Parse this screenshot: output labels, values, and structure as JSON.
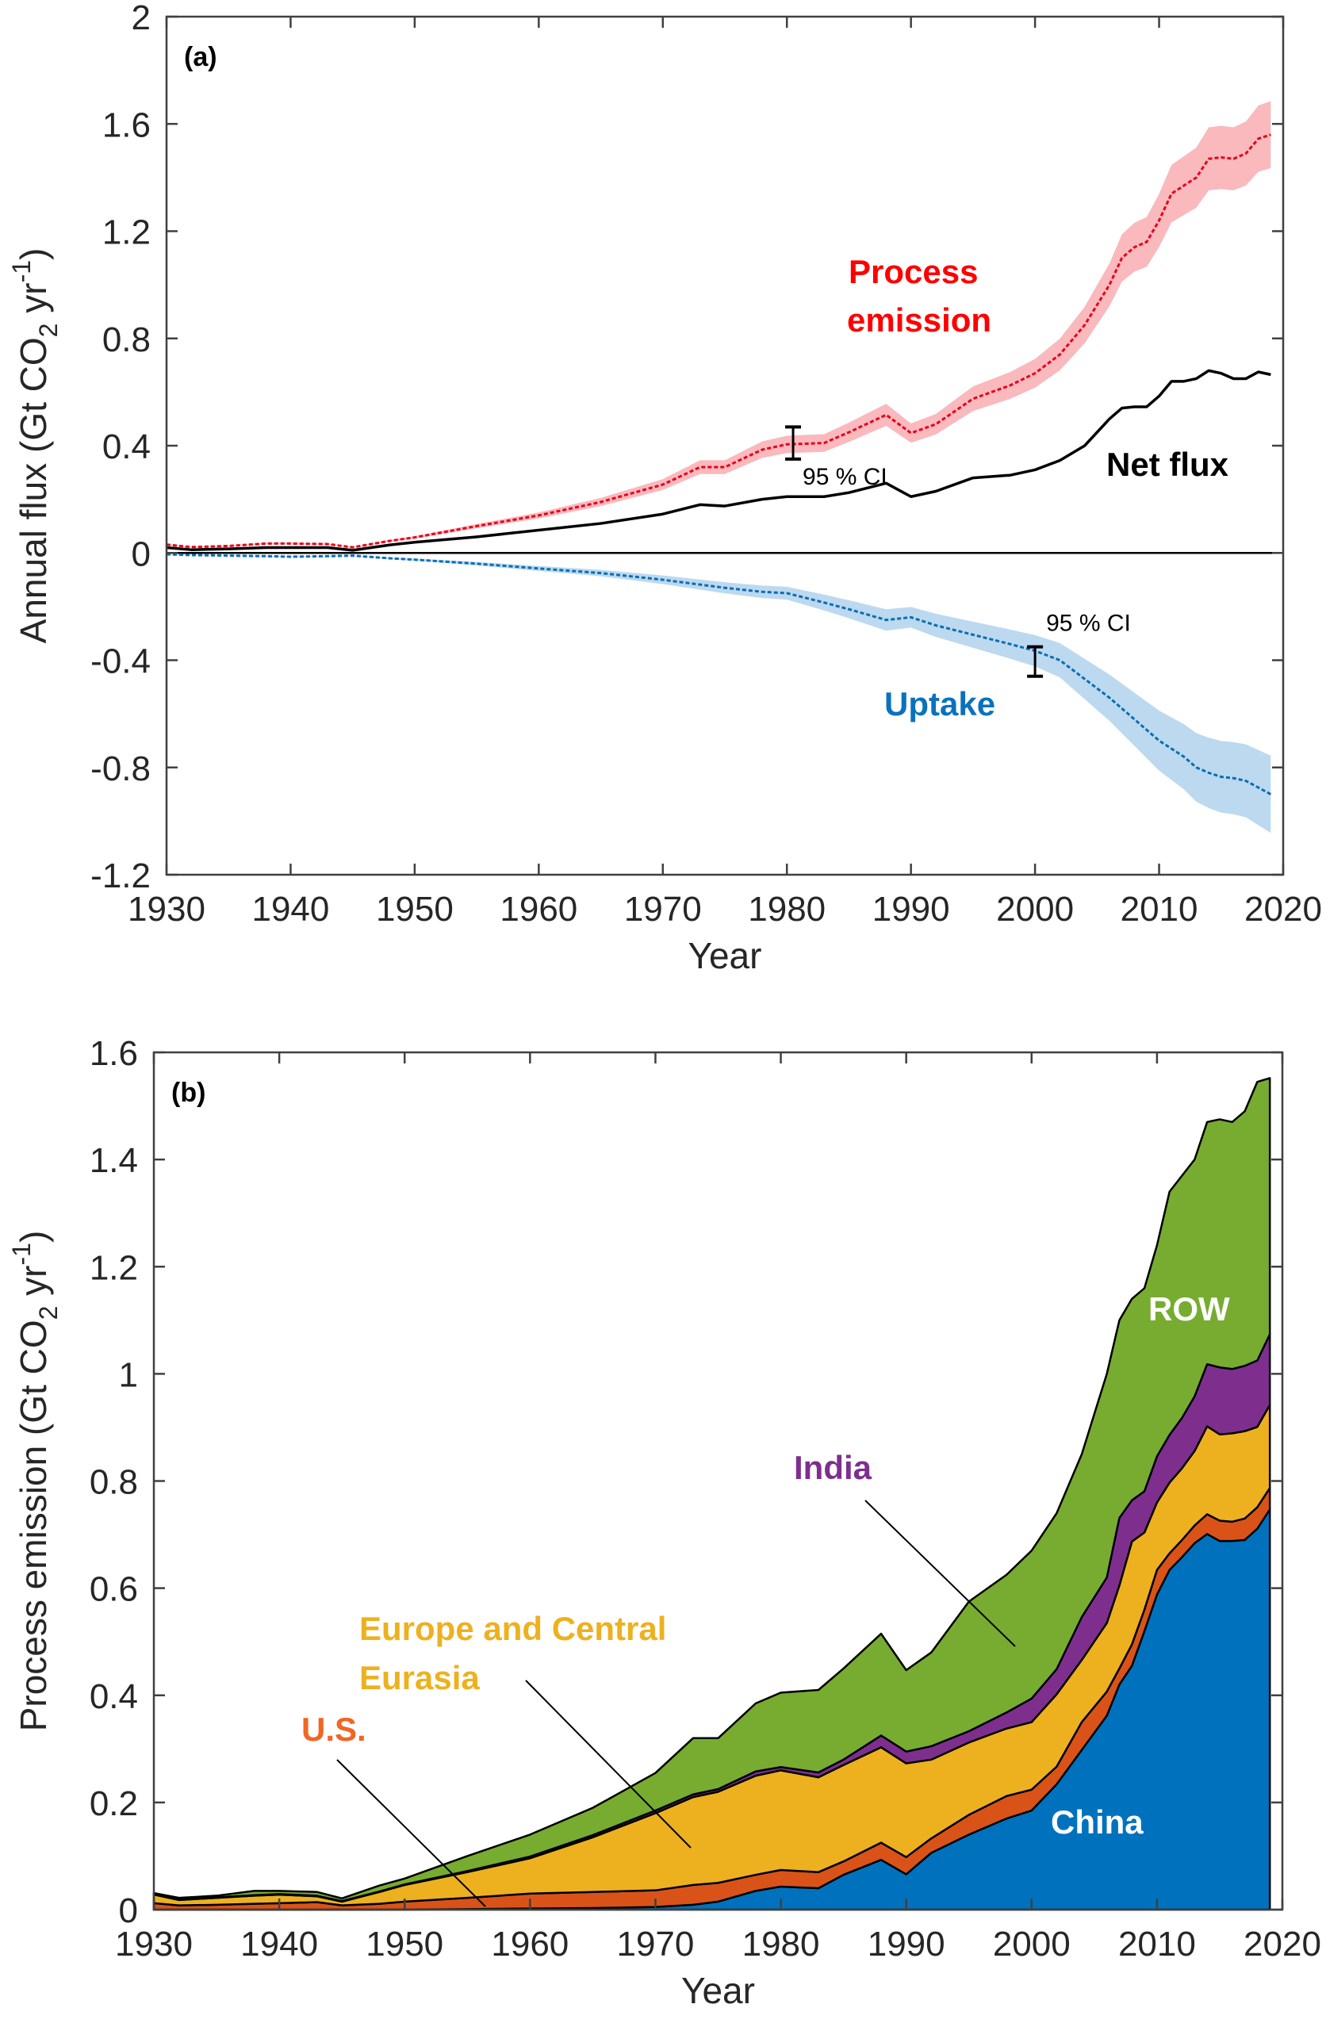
{
  "chart_data": [
    {
      "type": "line",
      "panel_label": "(a)",
      "xlabel": "Year",
      "ylabel": "Annual flux (Gt CO2 yr-1)",
      "ylabel_parts": {
        "main": "Annual flux (Gt CO",
        "sub": "2",
        "mid": " yr",
        "sup": "-1",
        "end": ")"
      },
      "xlim": [
        1930,
        2020
      ],
      "ylim": [
        -1.2,
        2
      ],
      "xticks": [
        1930,
        1940,
        1950,
        1960,
        1970,
        1980,
        1990,
        2000,
        2010,
        2020
      ],
      "yticks": [
        -1.2,
        -0.8,
        -0.4,
        0,
        0.4,
        0.8,
        1.2,
        1.6,
        2
      ],
      "ytick_labels": [
        "-1.2",
        "-0.8",
        "-0.4",
        "0",
        "0.4",
        "0.8",
        "1.2",
        "1.6",
        "2"
      ],
      "grid": false,
      "x": [
        1930,
        1932,
        1935,
        1938,
        1940,
        1943,
        1945,
        1948,
        1950,
        1955,
        1960,
        1965,
        1970,
        1973,
        1975,
        1978,
        1980,
        1983,
        1985,
        1988,
        1990,
        1992,
        1995,
        1998,
        2000,
        2002,
        2004,
        2006,
        2007,
        2008,
        2009,
        2010,
        2011,
        2012,
        2013,
        2014,
        2015,
        2016,
        2017,
        2018,
        2019
      ],
      "series": [
        {
          "name": "Process emission",
          "label_lines": [
            "Process",
            "emission"
          ],
          "color": "#e8001c",
          "band_color": "#f9b9bd",
          "style": "dotted",
          "ci_relative": 0.08,
          "values": [
            0.031,
            0.022,
            0.026,
            0.035,
            0.035,
            0.033,
            0.021,
            0.045,
            0.058,
            0.1,
            0.14,
            0.19,
            0.255,
            0.32,
            0.32,
            0.385,
            0.405,
            0.41,
            0.45,
            0.515,
            0.447,
            0.48,
            0.575,
            0.625,
            0.67,
            0.74,
            0.85,
            1.0,
            1.1,
            1.14,
            1.16,
            1.24,
            1.34,
            1.37,
            1.4,
            1.47,
            1.475,
            1.47,
            1.49,
            1.545,
            1.56
          ]
        },
        {
          "name": "Net flux",
          "label_lines": [
            "Net flux"
          ],
          "color": "#000000",
          "style": "solid",
          "values": [
            0.02,
            0.012,
            0.015,
            0.02,
            0.02,
            0.02,
            0.01,
            0.03,
            0.04,
            0.06,
            0.085,
            0.11,
            0.145,
            0.18,
            0.175,
            0.2,
            0.21,
            0.21,
            0.225,
            0.26,
            0.21,
            0.23,
            0.28,
            0.29,
            0.31,
            0.345,
            0.4,
            0.5,
            0.54,
            0.545,
            0.545,
            0.585,
            0.64,
            0.64,
            0.65,
            0.68,
            0.67,
            0.65,
            0.65,
            0.675,
            0.665
          ]
        },
        {
          "name": "Uptake",
          "label_lines": [
            "Uptake"
          ],
          "color": "#0a6eb4",
          "band_color": "#bcd9ef",
          "style": "dotted",
          "ci_relative": 0.16,
          "values": [
            -0.005,
            -0.008,
            -0.01,
            -0.012,
            -0.014,
            -0.012,
            -0.01,
            -0.02,
            -0.025,
            -0.04,
            -0.058,
            -0.075,
            -0.1,
            -0.118,
            -0.13,
            -0.145,
            -0.15,
            -0.185,
            -0.21,
            -0.25,
            -0.24,
            -0.27,
            -0.305,
            -0.34,
            -0.365,
            -0.4,
            -0.47,
            -0.54,
            -0.58,
            -0.62,
            -0.66,
            -0.7,
            -0.73,
            -0.76,
            -0.8,
            -0.82,
            -0.835,
            -0.84,
            -0.85,
            -0.875,
            -0.9
          ]
        }
      ],
      "annotations": [
        {
          "text": "95 % CI",
          "series": "Process emission",
          "year": 1980.5,
          "ci": [
            0.35,
            0.47
          ]
        },
        {
          "text": "95 % CI",
          "series": "Uptake",
          "year": 2000,
          "ci": [
            -0.46,
            -0.35
          ]
        }
      ]
    },
    {
      "type": "area",
      "stacked": true,
      "panel_label": "(b)",
      "xlabel": "Year",
      "ylabel": "Process emission (Gt CO2 yr-1)",
      "ylabel_parts": {
        "main": "Process emission (Gt CO",
        "sub": "2",
        "mid": " yr",
        "sup": "-1",
        "end": ")"
      },
      "xlim": [
        1930,
        2020
      ],
      "ylim": [
        0,
        1.6
      ],
      "xticks": [
        1930,
        1940,
        1950,
        1960,
        1970,
        1980,
        1990,
        2000,
        2010,
        2020
      ],
      "yticks": [
        0,
        0.2,
        0.4,
        0.6,
        0.8,
        1,
        1.2,
        1.4,
        1.6
      ],
      "ytick_labels": [
        "0",
        "0.2",
        "0.4",
        "0.6",
        "0.8",
        "1",
        "1.2",
        "1.4",
        "1.6"
      ],
      "grid": false,
      "x": [
        1930,
        1932,
        1935,
        1938,
        1940,
        1943,
        1945,
        1948,
        1950,
        1955,
        1960,
        1965,
        1970,
        1973,
        1975,
        1978,
        1980,
        1983,
        1985,
        1988,
        1990,
        1992,
        1995,
        1998,
        2000,
        2002,
        2004,
        2006,
        2007,
        2008,
        2009,
        2010,
        2011,
        2012,
        2013,
        2014,
        2015,
        2016,
        2017,
        2018,
        2019
      ],
      "series": [
        {
          "name": "China",
          "label_lines": [
            "China"
          ],
          "color": "#0072bd",
          "label_color": "#ffffff",
          "values": [
            0,
            0,
            0,
            0,
            0,
            0,
            0,
            0,
            0,
            0.001,
            0.002,
            0.003,
            0.005,
            0.009,
            0.015,
            0.035,
            0.043,
            0.04,
            0.065,
            0.093,
            0.066,
            0.106,
            0.14,
            0.17,
            0.185,
            0.234,
            0.298,
            0.362,
            0.42,
            0.455,
            0.52,
            0.588,
            0.634,
            0.658,
            0.684,
            0.701,
            0.688,
            0.688,
            0.69,
            0.711,
            0.747
          ]
        },
        {
          "name": "U.S.",
          "label_lines": [
            "U.S."
          ],
          "color": "#d95319",
          "label_color": "#f26522",
          "values": [
            0.012,
            0.008,
            0.009,
            0.011,
            0.012,
            0.014,
            0.008,
            0.011,
            0.015,
            0.021,
            0.028,
            0.03,
            0.031,
            0.037,
            0.035,
            0.03,
            0.031,
            0.03,
            0.025,
            0.032,
            0.032,
            0.027,
            0.037,
            0.042,
            0.039,
            0.033,
            0.052,
            0.045,
            0.03,
            0.04,
            0.04,
            0.046,
            0.031,
            0.032,
            0.033,
            0.037,
            0.038,
            0.036,
            0.04,
            0.04,
            0.04
          ]
        },
        {
          "name": "Europe and Central Eurasia",
          "label_lines": [
            "Europe and Central",
            "Eurasia"
          ],
          "color": "#edb120",
          "label_color": "#edb120",
          "values": [
            0.016,
            0.01,
            0.013,
            0.015,
            0.016,
            0.011,
            0.007,
            0.022,
            0.031,
            0.048,
            0.066,
            0.102,
            0.144,
            0.164,
            0.17,
            0.185,
            0.186,
            0.177,
            0.18,
            0.178,
            0.175,
            0.147,
            0.135,
            0.126,
            0.126,
            0.135,
            0.116,
            0.128,
            0.155,
            0.192,
            0.144,
            0.126,
            0.132,
            0.134,
            0.139,
            0.164,
            0.161,
            0.165,
            0.163,
            0.15,
            0.155
          ]
        },
        {
          "name": "India",
          "label_lines": [
            "India"
          ],
          "color": "#7e2f8e",
          "label_color": "#7e2f8e",
          "values": [
            0.001,
            0.001,
            0.001,
            0.001,
            0.001,
            0.001,
            0.001,
            0.001,
            0.001,
            0.002,
            0.003,
            0.004,
            0.005,
            0.005,
            0.005,
            0.008,
            0.006,
            0.009,
            0.01,
            0.022,
            0.022,
            0.025,
            0.021,
            0.03,
            0.044,
            0.047,
            0.08,
            0.085,
            0.126,
            0.077,
            0.077,
            0.086,
            0.089,
            0.094,
            0.102,
            0.116,
            0.125,
            0.12,
            0.122,
            0.124,
            0.132
          ]
        },
        {
          "name": "ROW",
          "label_lines": [
            "ROW"
          ],
          "color": "#77ac30",
          "label_color": "#ffffff",
          "values": [
            0.002,
            0.003,
            0.003,
            0.008,
            0.006,
            0.007,
            0.005,
            0.011,
            0.011,
            0.028,
            0.041,
            0.051,
            0.07,
            0.105,
            0.095,
            0.127,
            0.139,
            0.154,
            0.17,
            0.19,
            0.152,
            0.175,
            0.242,
            0.257,
            0.276,
            0.291,
            0.304,
            0.38,
            0.369,
            0.376,
            0.379,
            0.394,
            0.454,
            0.452,
            0.442,
            0.452,
            0.463,
            0.461,
            0.475,
            0.52,
            0.478
          ]
        }
      ]
    }
  ]
}
